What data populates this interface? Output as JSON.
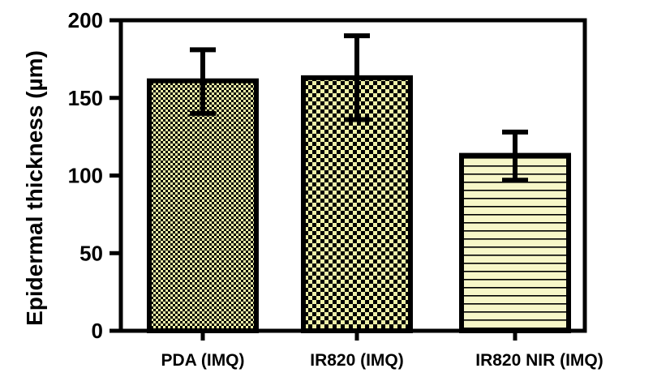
{
  "chart_data": {
    "type": "bar",
    "title": "",
    "xlabel": "",
    "ylabel": "Epidermal thickness (µm)",
    "ylim": [
      0,
      200
    ],
    "yticks": [
      0,
      50,
      100,
      150,
      200
    ],
    "categories": [
      "PDA (IMQ)",
      "IR820 (IMQ)",
      "IR820 NIR (IMQ)"
    ],
    "values": [
      161,
      163,
      113
    ],
    "error_low": [
      140,
      136,
      97
    ],
    "error_high": [
      181,
      190,
      128
    ],
    "bar_fill_patterns": [
      "fine-checker",
      "coarse-checker",
      "horizontal-stripes"
    ],
    "colors": {
      "bar_tint": "#eef0a8",
      "bar_tint_light": "#f7f7c8",
      "pattern_ink": "#000000"
    },
    "grid": false,
    "legend": "none"
  }
}
